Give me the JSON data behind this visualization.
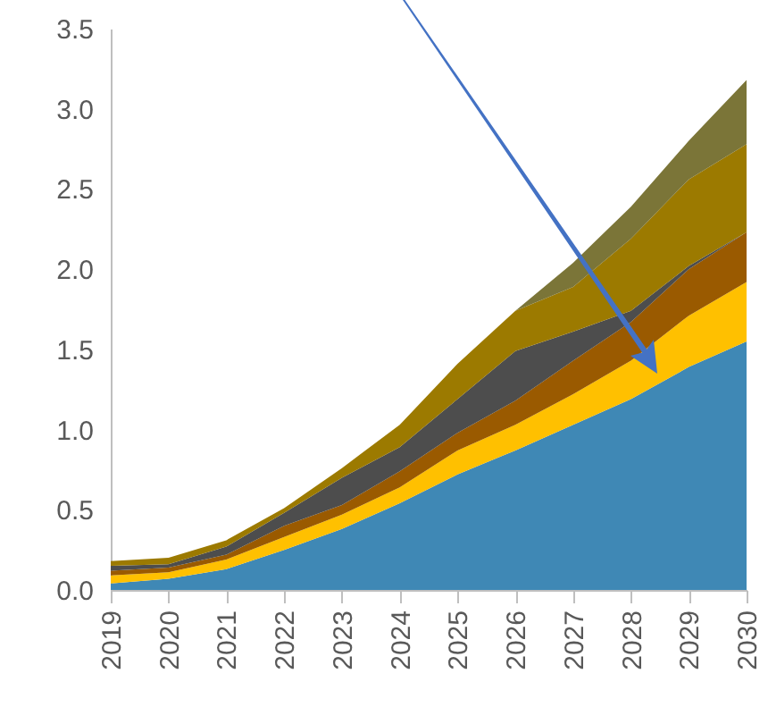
{
  "chart_data": {
    "type": "area",
    "stacked": true,
    "categories": [
      "2019",
      "2020",
      "2021",
      "2022",
      "2023",
      "2024",
      "2025",
      "2026",
      "2027",
      "2028",
      "2029",
      "2030"
    ],
    "series": [
      {
        "color": "#3f88b5",
        "values": [
          0.04,
          0.07,
          0.13,
          0.25,
          0.38,
          0.54,
          0.72,
          0.87,
          1.03,
          1.19,
          1.39,
          1.55
        ]
      },
      {
        "color": "#ffc000",
        "values": [
          0.05,
          0.04,
          0.06,
          0.08,
          0.09,
          0.1,
          0.15,
          0.16,
          0.19,
          0.24,
          0.32,
          0.37
        ]
      },
      {
        "color": "#9a5a00",
        "values": [
          0.03,
          0.03,
          0.03,
          0.07,
          0.06,
          0.1,
          0.11,
          0.15,
          0.21,
          0.24,
          0.29,
          0.31
        ]
      },
      {
        "color": "#4d4d4d",
        "values": [
          0.03,
          0.02,
          0.05,
          0.08,
          0.17,
          0.15,
          0.21,
          0.31,
          0.18,
          0.07,
          0.02,
          0
        ]
      },
      {
        "color": "#9c7a00",
        "values": [
          0.03,
          0.04,
          0.04,
          0.03,
          0.06,
          0.14,
          0.22,
          0.25,
          0.28,
          0.45,
          0.54,
          0.55
        ]
      },
      {
        "color": "#7b7538",
        "values": [
          0,
          0,
          0,
          0,
          0,
          0,
          0,
          0,
          0.15,
          0.2,
          0.24,
          0.4
        ]
      }
    ],
    "ylim": [
      0,
      3.5
    ],
    "yticks": [
      {
        "value": 0,
        "label": "0.0"
      },
      {
        "value": 0.5,
        "label": "0.5"
      },
      {
        "value": 1,
        "label": "1.0"
      },
      {
        "value": 1.5,
        "label": "1.5"
      },
      {
        "value": 2,
        "label": "2.0"
      },
      {
        "value": 2.5,
        "label": "2.5"
      },
      {
        "value": 3,
        "label": "3.0"
      },
      {
        "value": 3.5,
        "label": "3.5"
      }
    ],
    "grid": false
  }
}
